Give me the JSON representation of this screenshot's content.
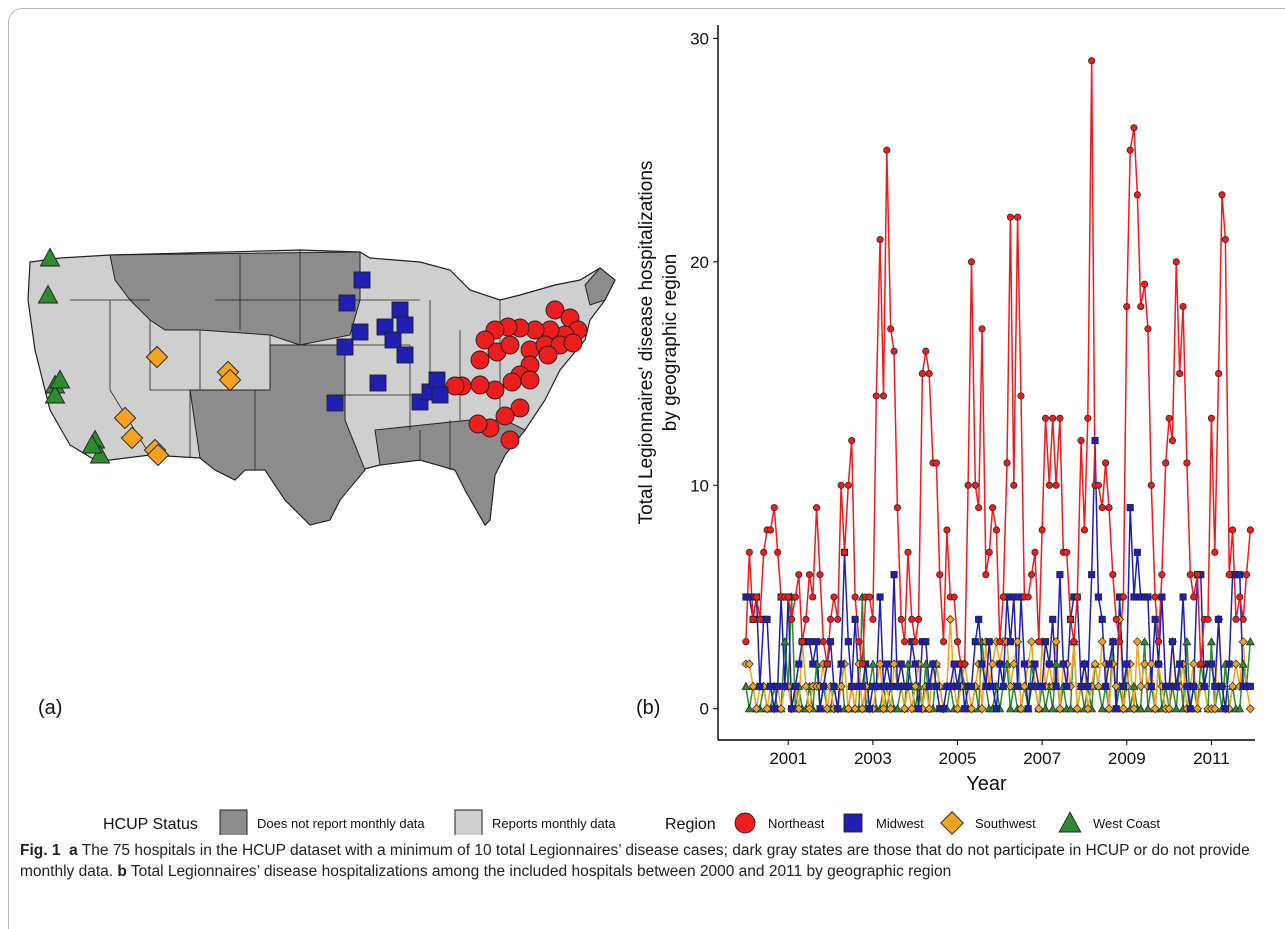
{
  "panel_a_label": "(a)",
  "map": {
    "legend_title": "HCUP Status",
    "legend": [
      {
        "label": "Does not report monthly data",
        "color": "#8c8c8c"
      },
      {
        "label": "Reports monthly data",
        "color": "#cfcfcf"
      }
    ]
  },
  "chart_data": {
    "type": "line",
    "panel_label": "(b)",
    "ylabel": [
      "Total Legionnaires' disease hospitalizations",
      "by geographic region"
    ],
    "xlabel": "Year",
    "legend_title": "Region",
    "xlim": [
      1999.34,
      2012.03
    ],
    "xticks": [
      2001,
      2003,
      2005,
      2007,
      2009,
      2011
    ],
    "ylim": [
      -1.4,
      30.6
    ],
    "yticks": [
      0,
      10,
      20,
      30
    ],
    "x": [
      2000,
      2000.08,
      2000.17,
      2000.25,
      2000.33,
      2000.42,
      2000.5,
      2000.58,
      2000.67,
      2000.75,
      2000.83,
      2000.92,
      2001,
      2001.08,
      2001.17,
      2001.25,
      2001.33,
      2001.42,
      2001.5,
      2001.58,
      2001.67,
      2001.75,
      2001.83,
      2001.92,
      2002,
      2002.08,
      2002.17,
      2002.25,
      2002.33,
      2002.42,
      2002.5,
      2002.58,
      2002.67,
      2002.75,
      2002.83,
      2002.92,
      2003,
      2003.08,
      2003.17,
      2003.25,
      2003.33,
      2003.42,
      2003.5,
      2003.58,
      2003.67,
      2003.75,
      2003.83,
      2003.92,
      2004,
      2004.08,
      2004.17,
      2004.25,
      2004.33,
      2004.42,
      2004.5,
      2004.58,
      2004.67,
      2004.75,
      2004.83,
      2004.92,
      2005,
      2005.08,
      2005.17,
      2005.25,
      2005.33,
      2005.42,
      2005.5,
      2005.58,
      2005.67,
      2005.75,
      2005.83,
      2005.92,
      2006,
      2006.08,
      2006.17,
      2006.25,
      2006.33,
      2006.42,
      2006.5,
      2006.58,
      2006.67,
      2006.75,
      2006.83,
      2006.92,
      2007,
      2007.08,
      2007.17,
      2007.25,
      2007.33,
      2007.42,
      2007.5,
      2007.58,
      2007.67,
      2007.75,
      2007.83,
      2007.92,
      2008,
      2008.08,
      2008.17,
      2008.25,
      2008.33,
      2008.42,
      2008.5,
      2008.58,
      2008.67,
      2008.75,
      2008.83,
      2008.92,
      2009,
      2009.08,
      2009.17,
      2009.25,
      2009.33,
      2009.42,
      2009.5,
      2009.58,
      2009.67,
      2009.75,
      2009.83,
      2009.92,
      2010,
      2010.08,
      2010.17,
      2010.25,
      2010.33,
      2010.42,
      2010.5,
      2010.58,
      2010.67,
      2010.75,
      2010.83,
      2010.92,
      2011,
      2011.08,
      2011.17,
      2011.25,
      2011.33,
      2011.42,
      2011.5,
      2011.58,
      2011.67,
      2011.75,
      2011.83,
      2011.92
    ],
    "series": [
      {
        "name": "Northeast",
        "color": "#ee1c1c",
        "marker": "circle",
        "values": [
          3,
          7,
          4,
          5,
          4,
          7,
          8,
          8,
          9,
          7,
          5,
          5,
          5,
          4,
          5,
          6,
          3,
          4,
          6,
          5,
          9,
          6,
          3,
          2,
          4,
          5,
          4,
          10,
          7,
          10,
          12,
          5,
          3,
          2,
          5,
          5,
          4,
          14,
          21,
          14,
          25,
          17,
          16,
          9,
          4,
          3,
          7,
          4,
          3,
          4,
          15,
          16,
          15,
          11,
          11,
          6,
          3,
          8,
          5,
          5,
          3,
          2,
          2,
          10,
          20,
          10,
          9,
          17,
          6,
          7,
          9,
          8,
          3,
          5,
          11,
          22,
          10,
          22,
          14,
          5,
          5,
          6,
          7,
          3,
          8,
          13,
          10,
          13,
          10,
          13,
          7,
          7,
          4,
          3,
          5,
          12,
          8,
          13,
          29,
          10,
          10,
          9,
          11,
          9,
          6,
          4,
          3,
          5,
          18,
          25,
          26,
          23,
          18,
          19,
          17,
          10,
          5,
          3,
          6,
          11,
          13,
          12,
          20,
          15,
          18,
          11,
          6,
          5,
          6,
          2,
          4,
          4,
          13,
          7,
          15,
          23,
          21,
          6,
          8,
          4,
          5,
          4,
          6,
          8
        ]
      },
      {
        "name": "Midwest",
        "color": "#1f1fb4",
        "marker": "square",
        "values": [
          5,
          5,
          4,
          5,
          1,
          4,
          4,
          1,
          0,
          1,
          5,
          1,
          5,
          0,
          1,
          2,
          3,
          3,
          3,
          2,
          3,
          0,
          1,
          2,
          3,
          1,
          0,
          2,
          7,
          3,
          1,
          4,
          1,
          1,
          2,
          0,
          1,
          1,
          5,
          1,
          2,
          1,
          6,
          1,
          2,
          1,
          1,
          3,
          2,
          0,
          3,
          3,
          1,
          2,
          1,
          0,
          0,
          1,
          1,
          2,
          1,
          2,
          0,
          1,
          1,
          3,
          4,
          2,
          1,
          3,
          1,
          0,
          2,
          1,
          5,
          3,
          5,
          1,
          5,
          2,
          0,
          1,
          2,
          1,
          1,
          3,
          2,
          4,
          1,
          6,
          2,
          1,
          4,
          5,
          5,
          1,
          2,
          1,
          6,
          12,
          5,
          4,
          1,
          2,
          3,
          0,
          5,
          1,
          2,
          9,
          5,
          7,
          5,
          5,
          5,
          1,
          4,
          2,
          5,
          1,
          1,
          3,
          1,
          2,
          5,
          1,
          0,
          1,
          6,
          6,
          1,
          2,
          2,
          1,
          4,
          1,
          0,
          2,
          6,
          6,
          6,
          1,
          1,
          1
        ]
      },
      {
        "name": "Southwest",
        "color": "#f5a31e",
        "marker": "diamond",
        "values": [
          2,
          2,
          1,
          0,
          1,
          1,
          0,
          1,
          0,
          1,
          0,
          1,
          1,
          0,
          1,
          0,
          3,
          1,
          0,
          1,
          1,
          1,
          2,
          0,
          1,
          0,
          0,
          1,
          2,
          0,
          1,
          0,
          2,
          0,
          1,
          0,
          0,
          1,
          2,
          0,
          1,
          0,
          2,
          1,
          1,
          0,
          1,
          0,
          1,
          2,
          0,
          1,
          0,
          2,
          2,
          1,
          0,
          1,
          4,
          1,
          0,
          1,
          2,
          1,
          0,
          1,
          2,
          0,
          3,
          1,
          2,
          3,
          2,
          3,
          3,
          1,
          2,
          3,
          0,
          1,
          2,
          3,
          1,
          0,
          3,
          1,
          2,
          1,
          3,
          0,
          2,
          2,
          1,
          3,
          0,
          1,
          2,
          0,
          1,
          2,
          1,
          3,
          2,
          0,
          2,
          1,
          4,
          0,
          1,
          2,
          0,
          3,
          1,
          2,
          1,
          2,
          0,
          2,
          1,
          0,
          0,
          3,
          1,
          1,
          2,
          0,
          1,
          2,
          0,
          1,
          1,
          0,
          0,
          0,
          4,
          1,
          0,
          0,
          1,
          2,
          1,
          3,
          1,
          0
        ]
      },
      {
        "name": "West Coast",
        "color": "#2e8b2e",
        "marker": "triangle",
        "values": [
          1,
          0,
          1,
          0,
          0,
          1,
          0,
          0,
          1,
          0,
          0,
          3,
          1,
          5,
          0,
          1,
          0,
          0,
          1,
          0,
          2,
          0,
          1,
          0,
          0,
          1,
          0,
          2,
          0,
          0,
          1,
          0,
          0,
          5,
          0,
          1,
          2,
          0,
          0,
          1,
          0,
          1,
          0,
          0,
          1,
          0,
          2,
          1,
          0,
          1,
          0,
          2,
          0,
          0,
          2,
          1,
          0,
          0,
          1,
          0,
          0,
          2,
          1,
          0,
          0,
          1,
          0,
          3,
          1,
          0,
          0,
          1,
          0,
          1,
          2,
          0,
          1,
          0,
          0,
          1,
          0,
          2,
          1,
          0,
          1,
          0,
          1,
          0,
          2,
          0,
          1,
          0,
          0,
          3,
          0,
          1,
          0,
          1,
          0,
          2,
          1,
          0,
          1,
          0,
          3,
          0,
          1,
          0,
          2,
          0,
          1,
          0,
          0,
          3,
          0,
          1,
          0,
          2,
          0,
          1,
          0,
          1,
          0,
          2,
          0,
          3,
          0,
          1,
          0,
          2,
          1,
          0,
          3,
          0,
          1,
          0,
          2,
          0,
          1,
          0,
          0,
          2,
          1,
          3
        ]
      }
    ]
  },
  "caption": {
    "label": "Fig. 1",
    "parts": [
      {
        "tag": "a",
        "text": "The 75 hospitals in the HCUP dataset with a minimum of 10 total Legionnaires’ disease cases; dark gray states are those that do not participate in HCUP or do not provide monthly data."
      },
      {
        "tag": "b",
        "text": "Total Legionnaires’ disease hospitalizations among the included hospitals between 2000 and 2011 by geographic region"
      }
    ]
  }
}
